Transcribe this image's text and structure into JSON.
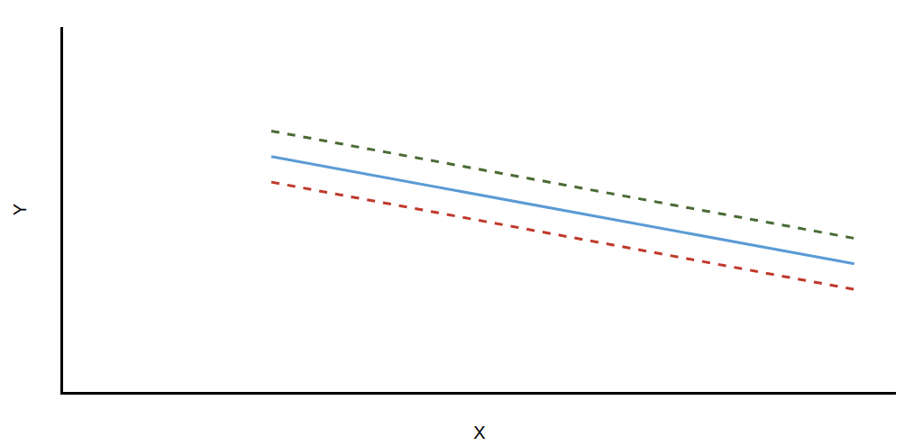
{
  "chart_data": {
    "type": "line",
    "xlabel": "X",
    "ylabel": "Y",
    "x": [
      2.5,
      9.5
    ],
    "series": [
      {
        "color": "#5b9bd5",
        "line_style": "solid",
        "values": [
          6.45,
          3.51
        ]
      },
      {
        "color": "#4a6b35",
        "line_style": "dashed",
        "values": [
          7.15,
          4.21
        ]
      },
      {
        "color": "#c0392b",
        "line_style": "dashed",
        "values": [
          5.75,
          2.81
        ]
      }
    ],
    "xlim": [
      0,
      10
    ],
    "ylim": [
      0,
      10
    ],
    "grid": false,
    "tick_labels": false
  }
}
